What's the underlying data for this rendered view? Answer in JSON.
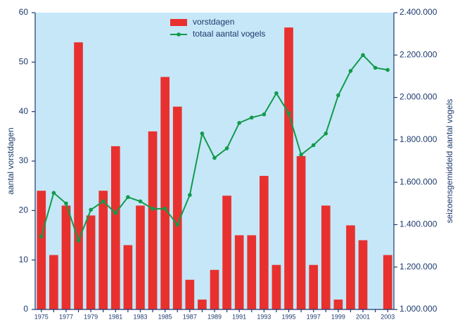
{
  "chart_data": {
    "type": "bar",
    "categories": [
      "1975",
      null,
      "1977",
      null,
      "1979",
      null,
      "1981",
      null,
      "1983",
      null,
      "1985",
      null,
      "1987",
      null,
      "1989",
      null,
      "1991",
      null,
      "1993",
      null,
      "1995",
      null,
      "1997",
      null,
      "1999",
      null,
      "2001",
      null,
      "2003"
    ],
    "series": [
      {
        "name": "vorstdagen",
        "type": "bar",
        "color": "#e8312f",
        "values": [
          24,
          11,
          21,
          54,
          19,
          24,
          33,
          13,
          21,
          36,
          47,
          41,
          6,
          2,
          8,
          23,
          15,
          15,
          27,
          9,
          57,
          31,
          9,
          21,
          2,
          17,
          14,
          0,
          11
        ]
      },
      {
        "name": "totaal aantal vogels",
        "type": "line",
        "axis": "y2",
        "color": "#119b4b",
        "values": [
          1345000,
          1550000,
          1500000,
          1325000,
          1470000,
          1510000,
          1455000,
          1530000,
          1510000,
          1475000,
          1475000,
          1400000,
          1540000,
          1830000,
          1715000,
          1760000,
          1880000,
          1905000,
          1920000,
          2020000,
          1925000,
          1730000,
          1775000,
          1830000,
          2010000,
          2125000,
          2200000,
          2140000,
          2130000
        ]
      }
    ],
    "ylabel": "aantal vorstdagen",
    "y2label": "seizoensgemiddeld aantal vogels",
    "ylim": [
      0,
      60
    ],
    "yticks": [
      0,
      10,
      20,
      30,
      40,
      50,
      60
    ],
    "y2lim": [
      1000000,
      2400000
    ],
    "y2ticks": [
      {
        "value": 1000000,
        "label": "1.000.000"
      },
      {
        "value": 1200000,
        "label": "1.200.000"
      },
      {
        "value": 1400000,
        "label": "1.400.000"
      },
      {
        "value": 1600000,
        "label": "1.600.000"
      },
      {
        "value": 1800000,
        "label": "1.800.000"
      },
      {
        "value": 2000000,
        "label": "2.000.000"
      },
      {
        "value": 2200000,
        "label": "2.200.000"
      },
      {
        "value": 2400000,
        "label": "2.400.000"
      }
    ],
    "legend": "top"
  }
}
